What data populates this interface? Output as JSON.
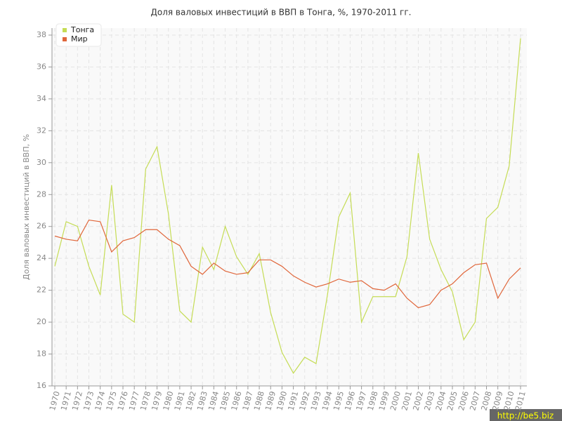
{
  "chart_data": {
    "type": "line",
    "title": "Доля валовых инвестиций в ВВП в Тонга, %, 1970-2011 гг.",
    "y_label": "Доля валовых инвестиций в ВВП, %",
    "watermark": "http://be5.biz",
    "x": [
      1970,
      1971,
      1972,
      1973,
      1974,
      1975,
      1976,
      1977,
      1978,
      1979,
      1980,
      1981,
      1982,
      1983,
      1984,
      1985,
      1986,
      1987,
      1988,
      1989,
      1990,
      1991,
      1992,
      1993,
      1994,
      1995,
      1996,
      1997,
      1998,
      1999,
      2000,
      2001,
      2002,
      2003,
      2004,
      2005,
      2006,
      2007,
      2008,
      2009,
      2010,
      2011
    ],
    "xlim": [
      1970,
      2011
    ],
    "ylim": [
      16,
      38
    ],
    "yticks": [
      16,
      18,
      20,
      22,
      24,
      26,
      28,
      30,
      32,
      34,
      36,
      38
    ],
    "grid": true,
    "legend": "top-left",
    "series": [
      {
        "name": "Тонга",
        "color": "#c5dc55",
        "values": [
          23.5,
          26.3,
          26.0,
          23.5,
          21.7,
          28.6,
          20.5,
          20.0,
          29.6,
          31.0,
          26.8,
          20.7,
          20.0,
          24.7,
          23.3,
          26.0,
          24.1,
          23.0,
          24.3,
          20.6,
          18.1,
          16.8,
          17.8,
          17.4,
          21.7,
          26.6,
          28.1,
          20.0,
          21.6,
          21.6,
          21.6,
          24.1,
          30.6,
          25.2,
          23.3,
          21.9,
          18.9,
          20.0,
          26.5,
          27.2,
          29.8,
          37.8
        ]
      },
      {
        "name": "Мир",
        "color": "#e0663a",
        "values": [
          25.4,
          25.2,
          25.1,
          26.4,
          26.3,
          24.4,
          25.1,
          25.3,
          25.8,
          25.8,
          25.2,
          24.8,
          23.5,
          23.0,
          23.7,
          23.2,
          23.0,
          23.1,
          23.9,
          23.9,
          23.5,
          22.9,
          22.5,
          22.2,
          22.4,
          22.7,
          22.5,
          22.6,
          22.1,
          22.0,
          22.4,
          21.5,
          20.9,
          21.1,
          22.0,
          22.4,
          23.1,
          23.6,
          23.7,
          21.5,
          22.7,
          23.4
        ]
      }
    ]
  }
}
